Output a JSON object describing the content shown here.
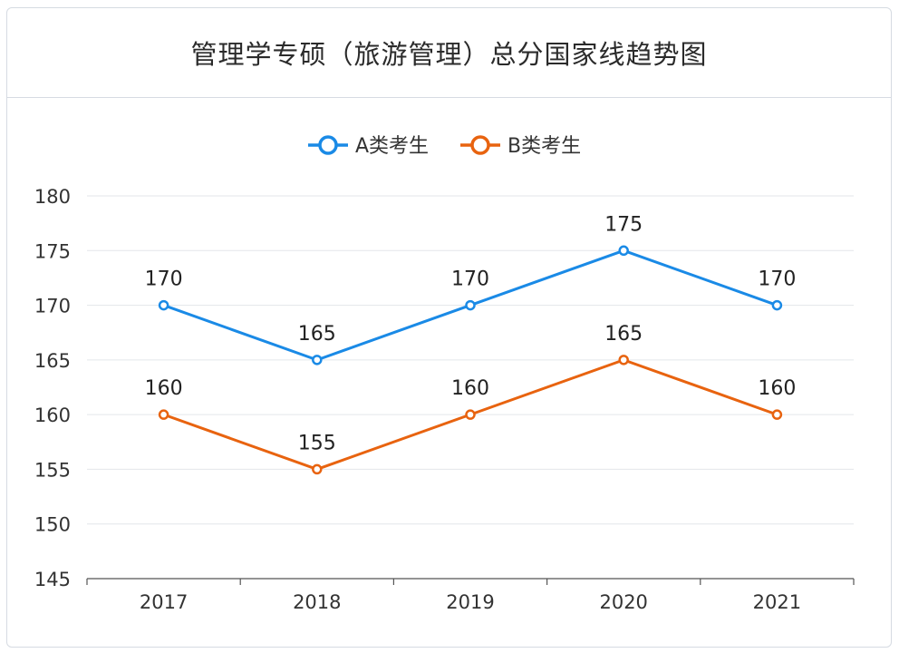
{
  "title": "管理学专硕（旅游管理）总分国家线趋势图",
  "chart_data": {
    "type": "line",
    "title": "管理学专硕（旅游管理）总分国家线趋势图",
    "xlabel": "",
    "ylabel": "",
    "categories": [
      "2017",
      "2018",
      "2019",
      "2020",
      "2021"
    ],
    "series": [
      {
        "name": "A类考生",
        "color": "#1a8ae6",
        "values": [
          170,
          165,
          170,
          175,
          170
        ]
      },
      {
        "name": "B类考生",
        "color": "#e8630f",
        "values": [
          160,
          155,
          160,
          165,
          160
        ]
      }
    ],
    "ylim": [
      145,
      180
    ],
    "yticks": [
      145,
      150,
      155,
      160,
      165,
      170,
      175,
      180
    ],
    "grid": true,
    "legend": "top-center",
    "data_labels": true
  }
}
